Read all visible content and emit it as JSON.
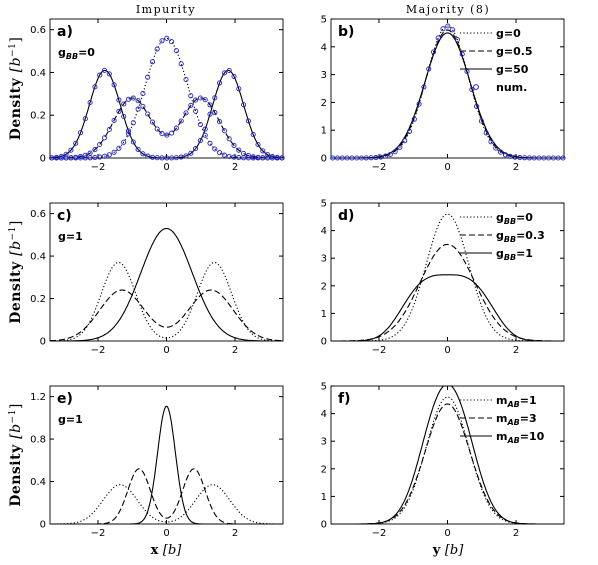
{
  "figure": {
    "col_titles": [
      "Impurity",
      "Majority (8)"
    ],
    "ylabel_main": "Density",
    "ylabel_unit": "[b",
    "ylabel_exp": "−1",
    "ylabel_close": "]",
    "xlabel_x": "x",
    "xlabel_y": "y",
    "xlabel_unit": "[b]"
  },
  "chart_data": [
    {
      "id": "a",
      "type": "line",
      "panel_label": "a)",
      "annotation": {
        "text": "g",
        "sub": "BB",
        "rest": "=0"
      },
      "xlim": [
        -3.4,
        3.4
      ],
      "ylim": [
        0,
        0.65
      ],
      "xticks": [
        -2,
        0,
        2
      ],
      "xticklabels": [
        "−2",
        "0",
        "2"
      ],
      "yticks": [
        0,
        0.2,
        0.4,
        0.6
      ],
      "yticklabels": [
        "0",
        "0.2",
        "0.4",
        "0.6"
      ],
      "legend": null,
      "series": [
        {
          "style": "dotted",
          "kind": "bump",
          "params": [
            [
              0,
              0.56,
              0.62
            ]
          ]
        },
        {
          "style": "dashed",
          "kind": "bump",
          "params": [
            [
              -1.0,
              0.28,
              0.55
            ],
            [
              1.0,
              0.28,
              0.55
            ]
          ]
        },
        {
          "style": "solid",
          "kind": "bump",
          "params": [
            [
              -1.8,
              0.41,
              0.45
            ],
            [
              1.8,
              0.41,
              0.45
            ]
          ]
        },
        {
          "style": "circles",
          "kind": "bump",
          "params": [
            [
              0,
              0.56,
              0.62
            ]
          ]
        },
        {
          "style": "circles",
          "kind": "bump",
          "params": [
            [
              -1.0,
              0.28,
              0.55
            ],
            [
              1.0,
              0.28,
              0.55
            ]
          ]
        },
        {
          "style": "circles",
          "kind": "bump",
          "params": [
            [
              -1.8,
              0.41,
              0.45
            ],
            [
              1.8,
              0.41,
              0.45
            ]
          ]
        }
      ]
    },
    {
      "id": "b",
      "type": "line",
      "panel_label": "b)",
      "annotation": null,
      "xlim": [
        -3.4,
        3.4
      ],
      "ylim": [
        0,
        5
      ],
      "xticks": [
        -2,
        0,
        2
      ],
      "xticklabels": [
        "−2",
        "0",
        "2"
      ],
      "yticks": [
        0,
        1,
        2,
        3,
        4,
        5
      ],
      "yticklabels": [
        "0",
        "1",
        "2",
        "3",
        "4",
        "5"
      ],
      "legend": [
        {
          "style": "dotted",
          "text": "g=0"
        },
        {
          "style": "dashed",
          "text": "g=0.5"
        },
        {
          "style": "solid",
          "text": "g=50"
        },
        {
          "style": "circles",
          "text": "num."
        }
      ],
      "series": [
        {
          "style": "dotted",
          "kind": "bump",
          "params": [
            [
              0,
              4.75,
              0.62
            ]
          ]
        },
        {
          "style": "dashed",
          "kind": "bump",
          "params": [
            [
              0,
              4.6,
              0.64
            ]
          ]
        },
        {
          "style": "solid",
          "kind": "bump",
          "params": [
            [
              0,
              4.5,
              0.66
            ]
          ]
        },
        {
          "style": "circles",
          "kind": "bump",
          "params": [
            [
              0,
              4.75,
              0.62
            ]
          ]
        }
      ]
    },
    {
      "id": "c",
      "type": "line",
      "panel_label": "c)",
      "annotation": {
        "text": "g=1"
      },
      "xlim": [
        -3.4,
        3.4
      ],
      "ylim": [
        0,
        0.65
      ],
      "xticks": [
        -2,
        0,
        2
      ],
      "xticklabels": [
        "−2",
        "0",
        "2"
      ],
      "yticks": [
        0,
        0.2,
        0.4,
        0.6
      ],
      "yticklabels": [
        "0",
        "0.2",
        "0.4",
        "0.6"
      ],
      "legend": null,
      "series": [
        {
          "style": "dotted",
          "kind": "bump",
          "params": [
            [
              -1.4,
              0.37,
              0.5
            ],
            [
              1.4,
              0.37,
              0.5
            ]
          ]
        },
        {
          "style": "dashed",
          "kind": "bump",
          "params": [
            [
              -1.3,
              0.24,
              0.65
            ],
            [
              1.3,
              0.24,
              0.65
            ]
          ]
        },
        {
          "style": "solid",
          "kind": "bump",
          "params": [
            [
              0,
              0.53,
              0.75
            ]
          ]
        }
      ]
    },
    {
      "id": "d",
      "type": "line",
      "panel_label": "d)",
      "annotation": null,
      "xlim": [
        -3.4,
        3.4
      ],
      "ylim": [
        0,
        5
      ],
      "xticks": [
        -2,
        0,
        2
      ],
      "xticklabels": [
        "−2",
        "0",
        "2"
      ],
      "yticks": [
        0,
        1,
        2,
        3,
        4,
        5
      ],
      "yticklabels": [
        "0",
        "1",
        "2",
        "3",
        "4",
        "5"
      ],
      "legend": [
        {
          "style": "dotted",
          "text": "g",
          "sub": "BB",
          "rest": "=0"
        },
        {
          "style": "dashed",
          "text": "g",
          "sub": "BB",
          "rest": "=0.3"
        },
        {
          "style": "solid",
          "text": "g",
          "sub": "BB",
          "rest": "=1"
        }
      ],
      "series": [
        {
          "style": "dotted",
          "kind": "bump",
          "params": [
            [
              0,
              4.6,
              0.62
            ]
          ]
        },
        {
          "style": "dashed",
          "kind": "bump",
          "params": [
            [
              0,
              3.5,
              0.8
            ]
          ]
        },
        {
          "style": "solid",
          "kind": "flat",
          "params": [
            [
              0,
              2.4,
              1.2
            ]
          ]
        }
      ]
    },
    {
      "id": "e",
      "type": "line",
      "panel_label": "e)",
      "annotation": {
        "text": "g=1"
      },
      "xlim": [
        -3.4,
        3.4
      ],
      "ylim": [
        0,
        1.3
      ],
      "xticks": [
        -2,
        0,
        2
      ],
      "xticklabels": [
        "−2",
        "0",
        "2"
      ],
      "yticks": [
        0,
        0.4,
        0.8,
        1.2
      ],
      "yticklabels": [
        "0",
        "0.4",
        "0.8",
        "1.2"
      ],
      "legend": null,
      "series": [
        {
          "style": "dotted",
          "kind": "bump",
          "params": [
            [
              -1.35,
              0.37,
              0.5
            ],
            [
              1.35,
              0.37,
              0.5
            ]
          ]
        },
        {
          "style": "dashed",
          "kind": "bump",
          "params": [
            [
              -0.8,
              0.52,
              0.33
            ],
            [
              0.8,
              0.52,
              0.33
            ]
          ]
        },
        {
          "style": "solid",
          "kind": "bump",
          "params": [
            [
              0,
              1.11,
              0.26
            ]
          ]
        }
      ]
    },
    {
      "id": "f",
      "type": "line",
      "panel_label": "f)",
      "annotation": null,
      "xlim": [
        -3.4,
        3.4
      ],
      "ylim": [
        0,
        5
      ],
      "xticks": [
        -2,
        0,
        2
      ],
      "xticklabels": [
        "−2",
        "0",
        "2"
      ],
      "yticks": [
        0,
        1,
        2,
        3,
        4,
        5
      ],
      "yticklabels": [
        "0",
        "1",
        "2",
        "3",
        "4",
        "5"
      ],
      "legend": [
        {
          "style": "dotted",
          "text": "m",
          "sub": "AB",
          "rest": "=1"
        },
        {
          "style": "dashed",
          "text": "m",
          "sub": "AB",
          "rest": "=3"
        },
        {
          "style": "solid",
          "text": "m",
          "sub": "AB",
          "rest": "=10"
        }
      ],
      "series": [
        {
          "style": "dotted",
          "kind": "bump",
          "params": [
            [
              0,
              4.6,
              0.62
            ]
          ]
        },
        {
          "style": "dashed",
          "kind": "bump",
          "params": [
            [
              0,
              4.35,
              0.65
            ]
          ]
        },
        {
          "style": "solid",
          "kind": "bump",
          "params": [
            [
              -0.35,
              3.1,
              0.55
            ],
            [
              0.35,
              3.1,
              0.55
            ]
          ]
        }
      ]
    }
  ]
}
